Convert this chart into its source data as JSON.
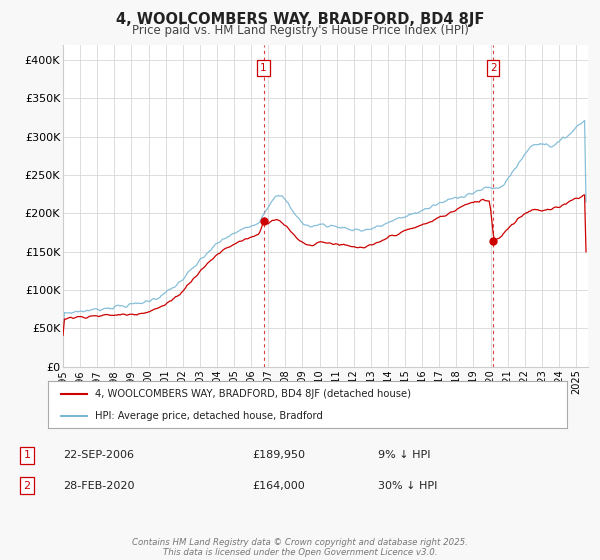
{
  "title": "4, WOOLCOMBERS WAY, BRADFORD, BD4 8JF",
  "subtitle": "Price paid vs. HM Land Registry's House Price Index (HPI)",
  "bg_color": "#f8f8f8",
  "plot_bg_color": "#ffffff",
  "hpi_color": "#7ab8d4",
  "price_color": "#cc0000",
  "grid_color": "#d8d8d8",
  "vline_color": "#cc0000",
  "sale1_date_x": 2006.73,
  "sale1_price": 189950,
  "sale2_date_x": 2020.16,
  "sale2_price": 164000,
  "legend_line1": "4, WOOLCOMBERS WAY, BRADFORD, BD4 8JF (detached house)",
  "legend_line2": "HPI: Average price, detached house, Bradford",
  "table_row1": [
    "1",
    "22-SEP-2006",
    "£189,950",
    "9% ↓ HPI"
  ],
  "table_row2": [
    "2",
    "28-FEB-2020",
    "£164,000",
    "30% ↓ HPI"
  ],
  "footer": "Contains HM Land Registry data © Crown copyright and database right 2025.\nThis data is licensed under the Open Government Licence v3.0.",
  "ylim": [
    0,
    420000
  ],
  "xlim_start": 1995.0,
  "xlim_end": 2025.7,
  "yticks": [
    0,
    50000,
    100000,
    150000,
    200000,
    250000,
    300000,
    350000,
    400000
  ],
  "ytick_labels": [
    "£0",
    "£50K",
    "£100K",
    "£150K",
    "£200K",
    "£250K",
    "£300K",
    "£350K",
    "£400K"
  ],
  "xticks": [
    1995,
    1996,
    1997,
    1998,
    1999,
    2000,
    2001,
    2002,
    2003,
    2004,
    2005,
    2006,
    2007,
    2008,
    2009,
    2010,
    2011,
    2012,
    2013,
    2014,
    2015,
    2016,
    2017,
    2018,
    2019,
    2020,
    2021,
    2022,
    2023,
    2024,
    2025
  ]
}
